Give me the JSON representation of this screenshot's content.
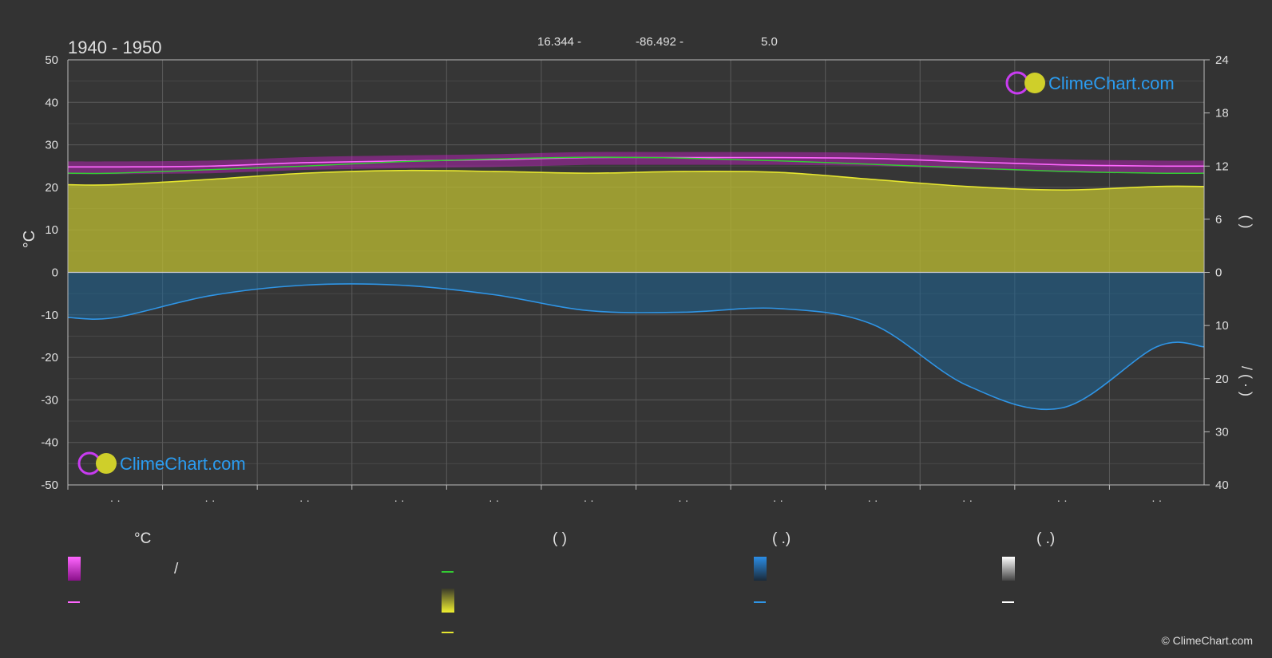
{
  "title": "1940 - 1950",
  "header": {
    "lat": "16.344 -",
    "lon": "-86.492 -",
    "elev": "5.0"
  },
  "logo_text": "ClimeChart.com",
  "copyright": "© ClimeChart.com",
  "axis_left_unit": "°C",
  "axis_right_top_marks": "(    )",
  "axis_right_bottom_marks": "/  (  ·  )",
  "legend": {
    "col1_header": "°C",
    "col1_slash": "/",
    "col2_header": "(           )",
    "col3_header": "(    .)",
    "col4_header": "(    .)"
  },
  "colors": {
    "background": "#333333",
    "temp_band": "#c81ec8",
    "temp_line": "#ff66ff",
    "green_line": "#33cc33",
    "sun_fill": "#b5b532",
    "sun_line": "#e6e630",
    "precip_fill": "#1e6496",
    "precip_line": "#2f95e6",
    "grid": "#555555",
    "logo_blue": "#2b9cf0"
  },
  "chart_data": {
    "type": "area",
    "x_months": [
      1,
      2,
      3,
      4,
      5,
      6,
      7,
      8,
      9,
      10,
      11,
      12
    ],
    "x_tick_labels": [
      "· ·",
      "· ·",
      "· ·",
      "· ·",
      "· ·",
      "· ·",
      "· ·",
      "· ·",
      "· ·",
      "· ·",
      "· ·",
      "· ·"
    ],
    "left_axis": {
      "label": "°C",
      "ylim": [
        -50,
        50
      ],
      "ticks": [
        50,
        40,
        30,
        20,
        10,
        0,
        -10,
        -20,
        -30,
        -40,
        -50
      ]
    },
    "right_axis_top": {
      "ylim": [
        0,
        24
      ],
      "ticks": [
        24,
        18,
        12,
        6,
        0
      ]
    },
    "right_axis_bottom": {
      "ylim": [
        0,
        40
      ],
      "ticks": [
        0,
        10,
        20,
        30,
        40
      ]
    },
    "grid": true,
    "series": [
      {
        "role": "temp_mean",
        "unit": "°C",
        "values": [
          24.8,
          25.0,
          25.8,
          26.2,
          26.5,
          27.0,
          27.0,
          27.0,
          26.8,
          26.0,
          25.3,
          25.0
        ]
      },
      {
        "role": "green_line",
        "unit": "hours",
        "values": [
          11.2,
          11.6,
          12.0,
          12.5,
          12.8,
          13.0,
          12.9,
          12.6,
          12.2,
          11.8,
          11.4,
          11.2
        ]
      },
      {
        "role": "sunshine",
        "unit": "hours",
        "values": [
          9.9,
          10.5,
          11.2,
          11.5,
          11.4,
          11.2,
          11.4,
          11.3,
          10.5,
          9.7,
          9.3,
          9.7
        ]
      },
      {
        "role": "precip",
        "unit": "mm",
        "values": [
          8.5,
          4.4,
          2.4,
          2.4,
          4.2,
          7.2,
          7.5,
          6.8,
          9.8,
          21.3,
          25.5,
          14.0
        ]
      }
    ]
  }
}
